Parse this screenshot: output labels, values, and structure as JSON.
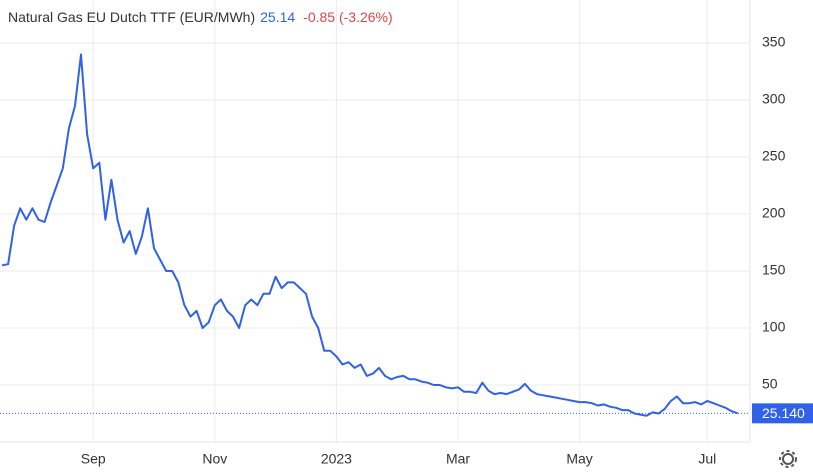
{
  "chart_data": {
    "type": "line",
    "title": "Natural Gas EU Dutch TTF (EUR/MWh)",
    "price": "25.14",
    "change": "-0.85 (-3.26%)",
    "categories": [
      null,
      null,
      null,
      null,
      null,
      null,
      null,
      null,
      null,
      null,
      null,
      null,
      null,
      null,
      null,
      "Sep",
      null,
      null,
      null,
      null,
      null,
      null,
      null,
      null,
      null,
      null,
      null,
      null,
      null,
      null,
      null,
      null,
      null,
      null,
      null,
      "Nov",
      null,
      null,
      null,
      null,
      null,
      null,
      null,
      null,
      null,
      null,
      null,
      null,
      null,
      null,
      null,
      null,
      null,
      null,
      null,
      "2023",
      null,
      null,
      null,
      null,
      null,
      null,
      null,
      null,
      null,
      null,
      null,
      null,
      null,
      null,
      null,
      null,
      null,
      null,
      null,
      "Mar",
      null,
      null,
      null,
      null,
      null,
      null,
      null,
      null,
      null,
      null,
      null,
      null,
      null,
      null,
      null,
      null,
      null,
      null,
      null,
      "May",
      null,
      null,
      null,
      null,
      null,
      null,
      null,
      null,
      null,
      null,
      null,
      null,
      null,
      null,
      null,
      null,
      null,
      null,
      null,
      null,
      "Jul",
      null,
      null,
      null,
      null,
      null
    ],
    "values": [
      155,
      156,
      190,
      205,
      195,
      205,
      195,
      193,
      210,
      225,
      240,
      275,
      295,
      340,
      270,
      240,
      245,
      195,
      230,
      195,
      175,
      185,
      165,
      180,
      205,
      170,
      160,
      150,
      150,
      140,
      120,
      110,
      115,
      100,
      105,
      120,
      125,
      115,
      110,
      100,
      120,
      125,
      120,
      130,
      130,
      145,
      135,
      140,
      140,
      135,
      130,
      110,
      100,
      80,
      80,
      75,
      68,
      70,
      65,
      68,
      58,
      60,
      65,
      58,
      55,
      57,
      58,
      55,
      55,
      53,
      52,
      50,
      50,
      48,
      47,
      48,
      44,
      44,
      43,
      52,
      45,
      42,
      43,
      42,
      44,
      46,
      51,
      45,
      42,
      41,
      40,
      39,
      38,
      37,
      36,
      35,
      35,
      34,
      32,
      33,
      31,
      30,
      28,
      28,
      25,
      24,
      23,
      26,
      25,
      29,
      36,
      40,
      34,
      34,
      35,
      33,
      36,
      34,
      32,
      30,
      27,
      25.14
    ],
    "color": "#2f62e6",
    "ylim": [
      0,
      375
    ],
    "yticks": [
      50,
      100,
      150,
      200,
      250,
      300,
      350
    ],
    "grid": true,
    "current_label": {
      "value": 25.14,
      "label": "25.140"
    }
  }
}
